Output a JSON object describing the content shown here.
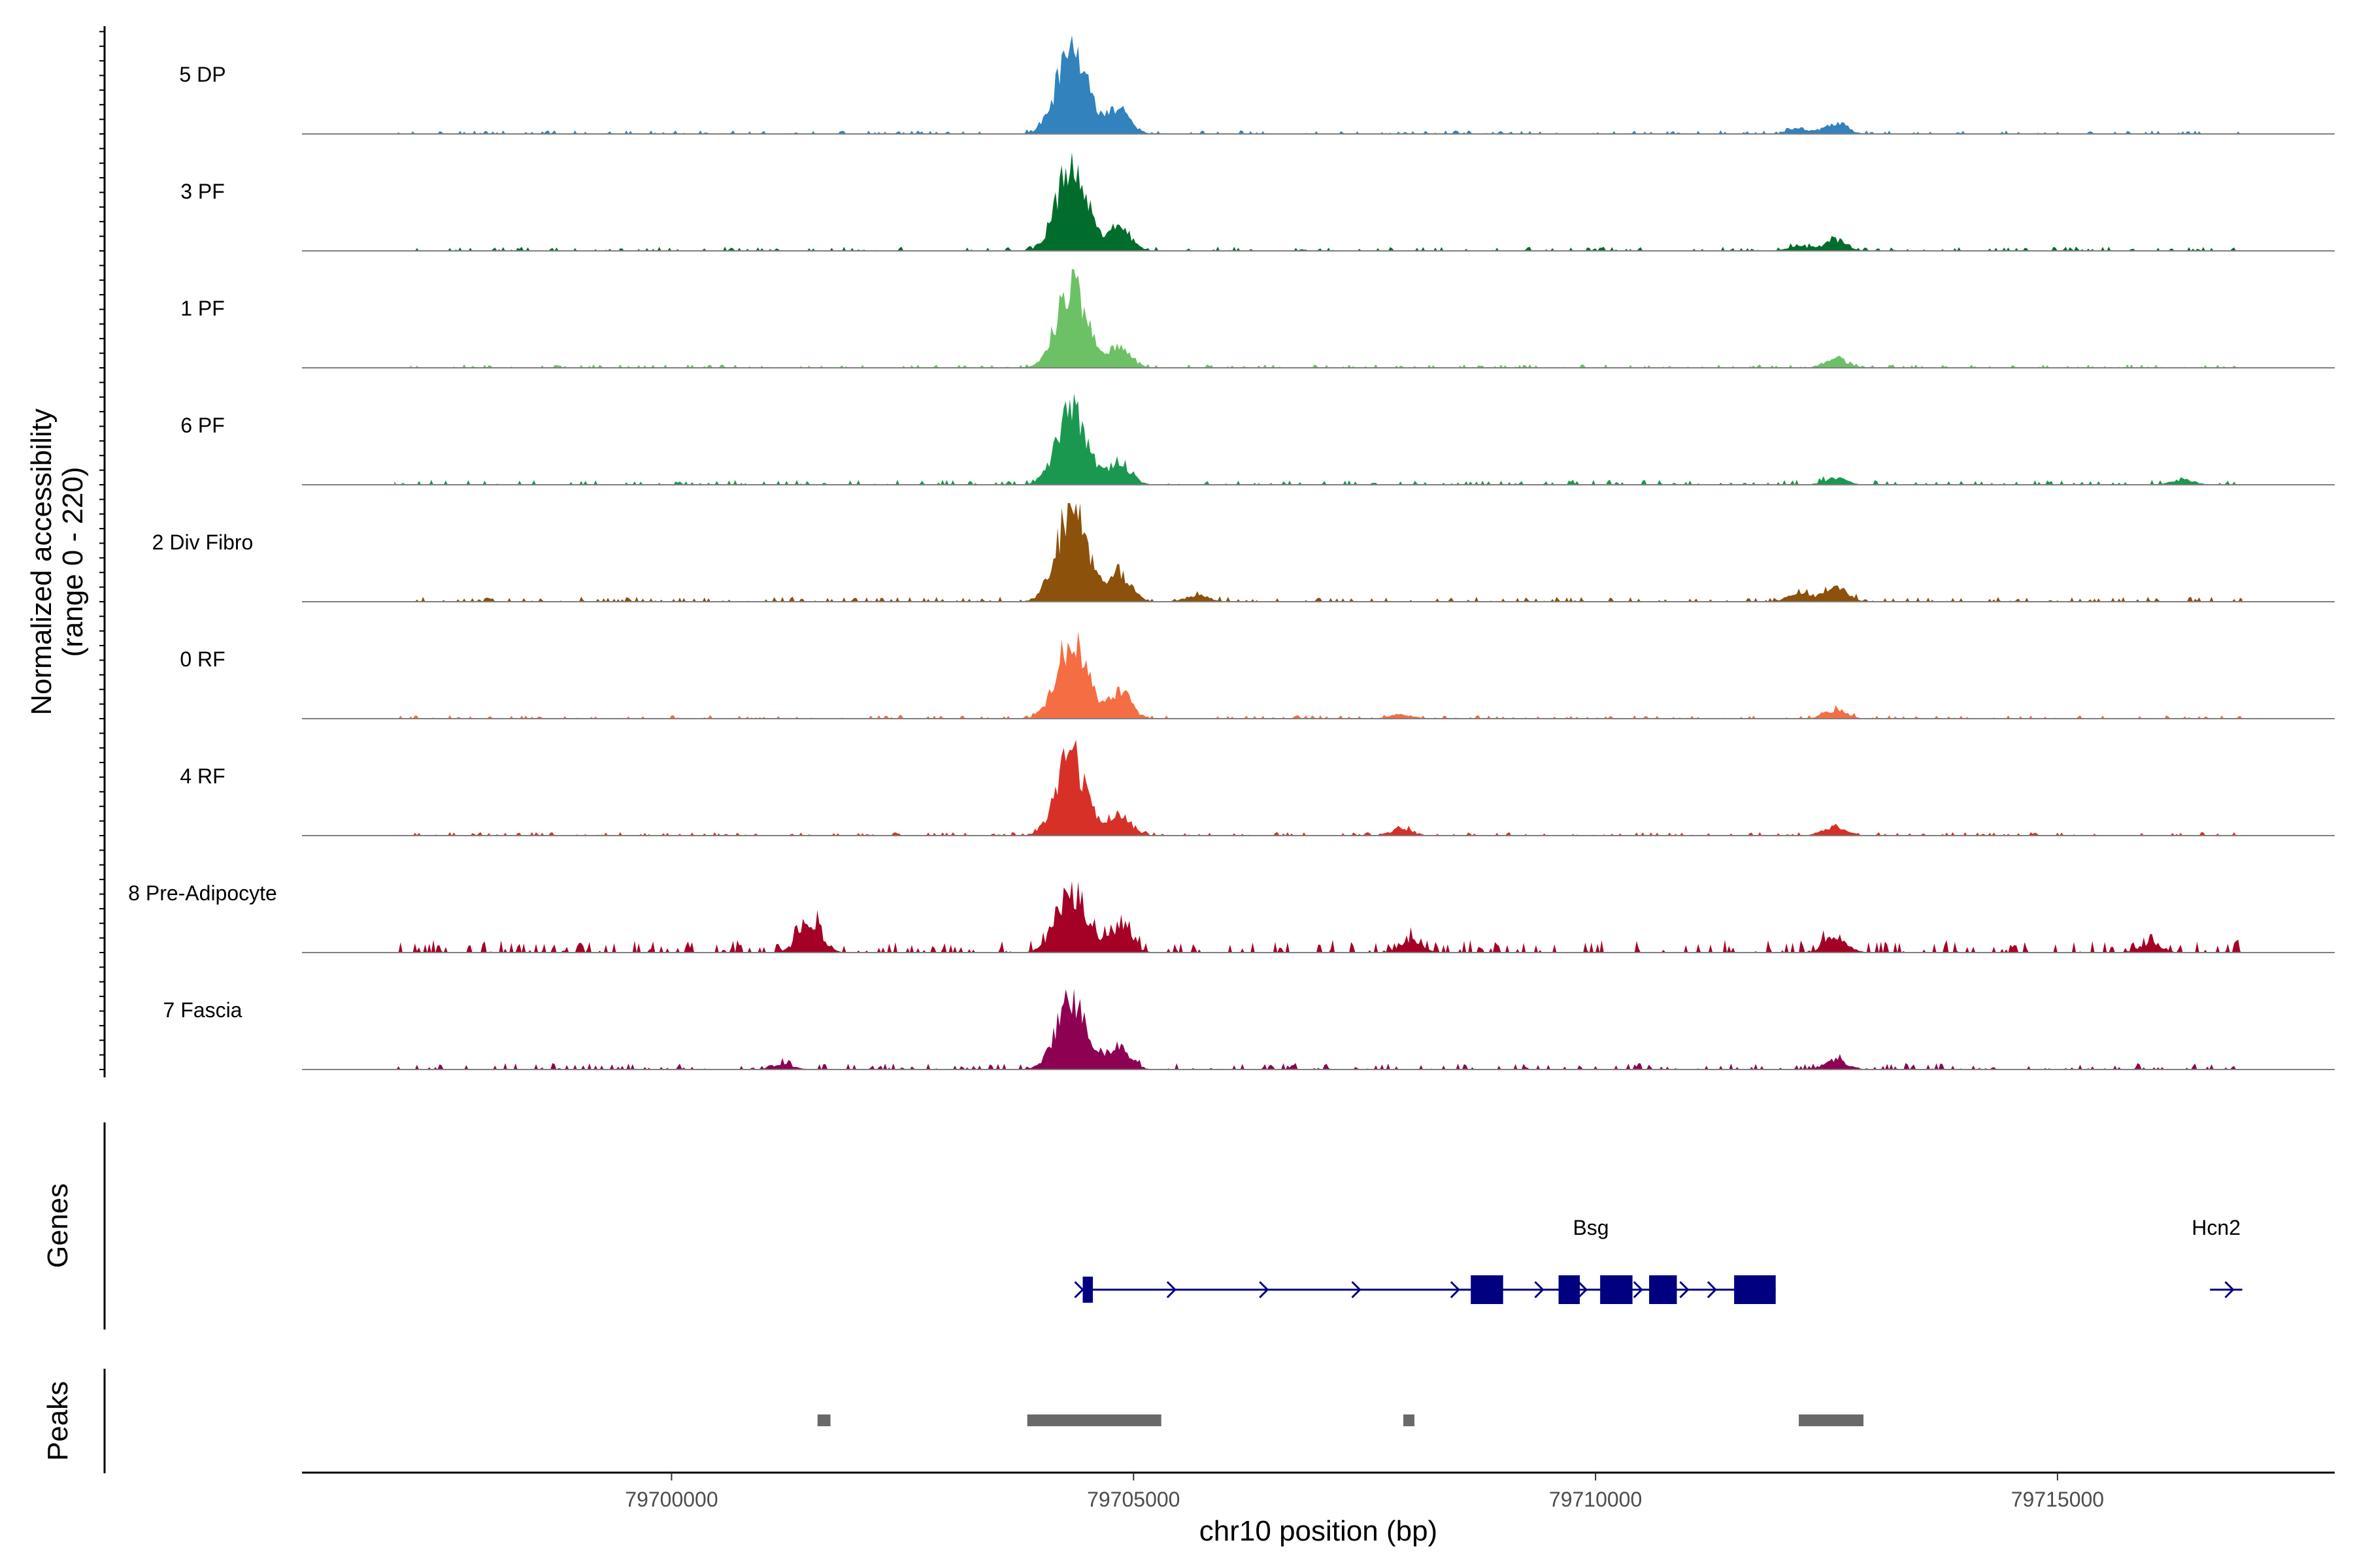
{
  "chart_data": {
    "type": "area",
    "title": "",
    "ylabel_line1": "Normalized accessibility",
    "ylabel_line2": "(range 0 - 220)",
    "ylim": [
      0,
      220
    ],
    "xlabel": "chr10 position (bp)",
    "xlim": [
      79696000,
      79718000
    ],
    "x_ticks": [
      79700000,
      79705000,
      79710000,
      79715000
    ],
    "x_tick_labels": [
      "79700000",
      "79705000",
      "79710000",
      "79715000"
    ],
    "signal_range": [
      79697000,
      79717000
    ],
    "series": [
      {
        "name": "5 DP",
        "color": "#3182bd",
        "peaks": [
          [
            79704330,
            190
          ],
          [
            79704850,
            55
          ],
          [
            79712600,
            25
          ],
          [
            79712200,
            12
          ]
        ],
        "noise": 5
      },
      {
        "name": "3 PF",
        "color": "#006d2c",
        "peaks": [
          [
            79704330,
            185
          ],
          [
            79704850,
            55
          ],
          [
            79712600,
            25
          ],
          [
            79712200,
            10
          ]
        ],
        "noise": 6
      },
      {
        "name": "1 PF",
        "color": "#6cc164",
        "peaks": [
          [
            79704330,
            180
          ],
          [
            79704850,
            45
          ],
          [
            79712600,
            22
          ]
        ],
        "noise": 5
      },
      {
        "name": "6 PF",
        "color": "#1a9850",
        "peaks": [
          [
            79704330,
            165
          ],
          [
            79704850,
            50
          ],
          [
            79712600,
            15
          ],
          [
            79716350,
            12
          ]
        ],
        "noise": 7
      },
      {
        "name": "2 Div Fibro",
        "color": "#8c510a",
        "peaks": [
          [
            79704330,
            200
          ],
          [
            79704850,
            65
          ],
          [
            79712600,
            35
          ],
          [
            79712200,
            18
          ],
          [
            79705700,
            15
          ]
        ],
        "noise": 7
      },
      {
        "name": "0 RF",
        "color": "#f46d43",
        "peaks": [
          [
            79704330,
            175
          ],
          [
            79704850,
            60
          ],
          [
            79712600,
            20
          ],
          [
            79707900,
            10
          ]
        ],
        "noise": 5
      },
      {
        "name": "4 RF",
        "color": "#d73027",
        "peaks": [
          [
            79704330,
            175
          ],
          [
            79704850,
            45
          ],
          [
            79712600,
            22
          ],
          [
            79707900,
            15
          ]
        ],
        "noise": 5
      },
      {
        "name": "8 Pre-Adipocyte",
        "color": "#a50026",
        "peaks": [
          [
            79704330,
            140
          ],
          [
            79701500,
            75
          ],
          [
            79704850,
            55
          ],
          [
            79712600,
            35
          ],
          [
            79708000,
            25
          ],
          [
            79716000,
            20
          ]
        ],
        "noise": 18
      },
      {
        "name": "7 Fascia",
        "color": "#8e0152",
        "peaks": [
          [
            79704330,
            150
          ],
          [
            79704850,
            50
          ],
          [
            79712600,
            22
          ],
          [
            79701200,
            12
          ]
        ],
        "noise": 9
      }
    ],
    "genes": [
      {
        "name": "Bsg",
        "start": 79704450,
        "end": 79711950,
        "strand": "+",
        "exons": [
          [
            79704450,
            79704560
          ],
          [
            79708650,
            79709000
          ],
          [
            79709600,
            79709830
          ],
          [
            79710050,
            79710400
          ],
          [
            79710580,
            79710880
          ],
          [
            79711500,
            79711950
          ]
        ],
        "arrows": [
          79704450,
          79705450,
          79706450,
          79707450,
          79708520,
          79709430,
          79709900,
          79710500,
          79711000,
          79711300
        ]
      },
      {
        "name": "Hcn2",
        "start": 79716650,
        "end": 79717000,
        "strand": "+",
        "exons": [],
        "arrows": [
          79716900
        ]
      }
    ],
    "peaks": [
      [
        79701580,
        79701720
      ],
      [
        79703850,
        79705300
      ],
      [
        79707920,
        79708040
      ],
      [
        79712200,
        79712900
      ]
    ],
    "track_labels": {
      "genes": "Genes",
      "peaks": "Peaks"
    }
  }
}
